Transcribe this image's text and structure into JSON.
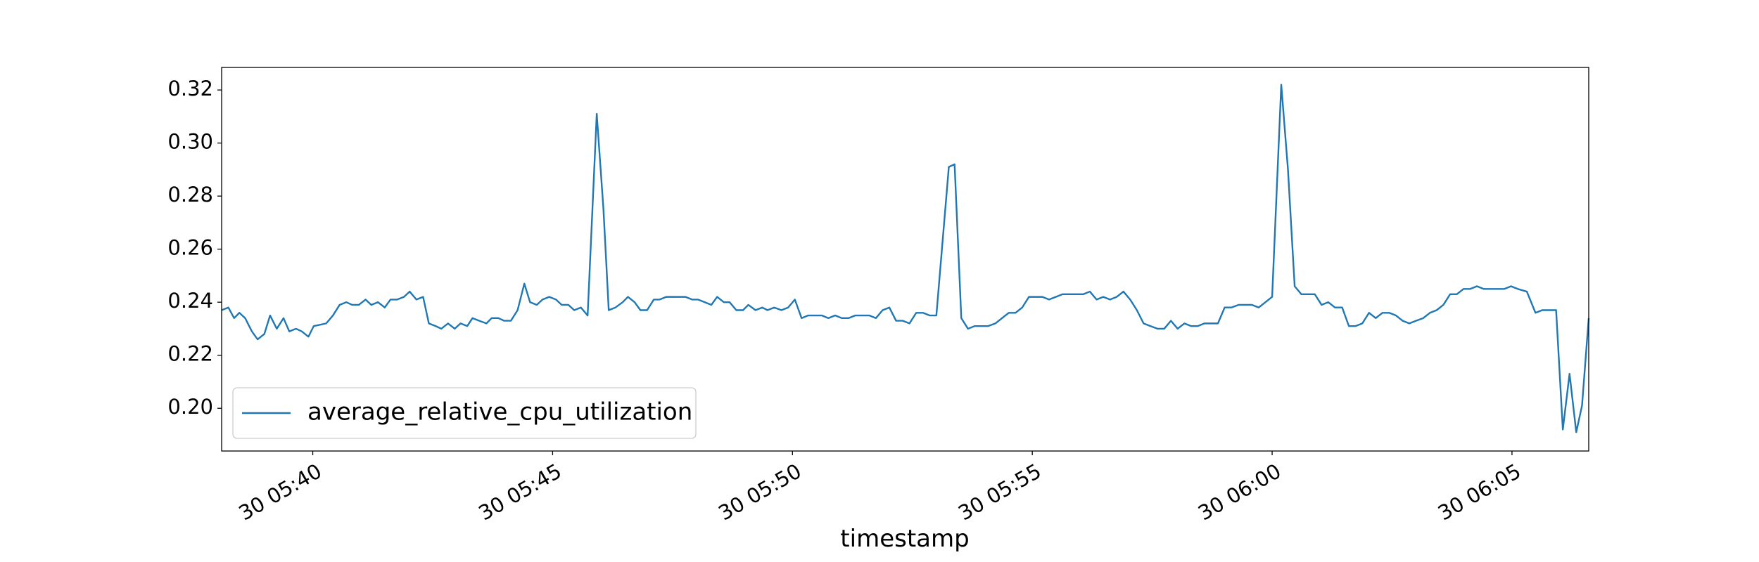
{
  "chart_data": {
    "type": "line",
    "xlabel": "timestamp",
    "x": [
      338.1,
      338.24,
      338.36,
      338.47,
      338.59,
      338.73,
      338.85,
      338.99,
      339.11,
      339.25,
      339.39,
      339.51,
      339.65,
      339.77,
      339.91,
      340.02,
      340.28,
      340.42,
      340.56,
      340.7,
      340.82,
      340.96,
      341.1,
      341.22,
      341.36,
      341.5,
      341.62,
      341.76,
      341.9,
      342.02,
      342.16,
      342.3,
      342.42,
      342.56,
      342.68,
      342.82,
      342.96,
      343.08,
      343.22,
      343.33,
      343.47,
      343.62,
      343.73,
      343.87,
      343.99,
      344.13,
      344.27,
      344.41,
      344.53,
      344.67,
      344.79,
      344.93,
      345.07,
      345.19,
      345.33,
      345.45,
      345.59,
      345.73,
      345.92,
      346.06,
      346.17,
      346.31,
      346.46,
      346.57,
      346.71,
      346.83,
      346.97,
      347.11,
      347.23,
      347.37,
      347.51,
      347.63,
      347.77,
      347.91,
      348.03,
      348.17,
      348.31,
      348.43,
      348.57,
      348.69,
      348.83,
      348.97,
      349.08,
      349.23,
      349.37,
      349.48,
      349.62,
      349.77,
      349.91,
      350.05,
      350.19,
      350.33,
      350.47,
      350.61,
      350.75,
      350.89,
      351.03,
      351.17,
      351.31,
      351.46,
      351.6,
      351.74,
      351.88,
      352.02,
      352.16,
      352.3,
      352.44,
      352.58,
      352.72,
      352.86,
      353.0,
      353.26,
      353.38,
      353.52,
      353.66,
      353.8,
      353.94,
      354.08,
      354.23,
      354.37,
      354.51,
      354.65,
      354.79,
      354.93,
      355.07,
      355.21,
      355.35,
      355.49,
      355.63,
      355.77,
      355.92,
      356.06,
      356.2,
      356.34,
      356.48,
      356.62,
      356.76,
      356.9,
      357.04,
      357.18,
      357.32,
      357.46,
      357.61,
      357.75,
      357.89,
      358.03,
      358.17,
      358.31,
      358.45,
      358.59,
      358.73,
      358.87,
      359.01,
      359.15,
      359.3,
      359.44,
      359.58,
      359.72,
      359.86,
      360.0,
      360.19,
      360.33,
      360.47,
      360.61,
      360.75,
      360.89,
      361.03,
      361.17,
      361.31,
      361.46,
      361.6,
      361.74,
      361.88,
      362.02,
      362.16,
      362.3,
      362.44,
      362.58,
      362.72,
      362.86,
      363.0,
      363.15,
      363.29,
      363.43,
      363.57,
      363.71,
      363.85,
      363.99,
      364.13,
      364.27,
      364.41,
      364.55,
      364.69,
      364.84,
      364.98,
      365.12,
      365.31,
      365.49,
      365.63,
      365.77,
      365.92,
      366.06,
      366.2,
      366.34,
      366.46,
      366.6
    ],
    "series": [
      {
        "name": "average_relative_cpu_utilization",
        "color": "#1f77b4",
        "values": [
          0.237,
          0.238,
          0.234,
          0.236,
          0.234,
          0.229,
          0.226,
          0.228,
          0.235,
          0.23,
          0.234,
          0.229,
          0.23,
          0.229,
          0.227,
          0.231,
          0.232,
          0.235,
          0.239,
          0.24,
          0.239,
          0.239,
          0.241,
          0.239,
          0.24,
          0.238,
          0.241,
          0.241,
          0.242,
          0.244,
          0.241,
          0.242,
          0.232,
          0.231,
          0.23,
          0.232,
          0.23,
          0.232,
          0.231,
          0.234,
          0.233,
          0.232,
          0.234,
          0.234,
          0.233,
          0.233,
          0.237,
          0.247,
          0.24,
          0.239,
          0.241,
          0.242,
          0.241,
          0.239,
          0.239,
          0.237,
          0.238,
          0.235,
          0.311,
          0.275,
          0.237,
          0.238,
          0.24,
          0.242,
          0.24,
          0.237,
          0.237,
          0.241,
          0.241,
          0.242,
          0.242,
          0.242,
          0.242,
          0.241,
          0.241,
          0.24,
          0.239,
          0.242,
          0.24,
          0.24,
          0.237,
          0.237,
          0.239,
          0.237,
          0.238,
          0.237,
          0.238,
          0.237,
          0.238,
          0.241,
          0.234,
          0.235,
          0.235,
          0.235,
          0.234,
          0.235,
          0.234,
          0.234,
          0.235,
          0.235,
          0.235,
          0.234,
          0.237,
          0.238,
          0.233,
          0.233,
          0.232,
          0.236,
          0.236,
          0.235,
          0.235,
          0.291,
          0.292,
          0.234,
          0.23,
          0.231,
          0.231,
          0.231,
          0.232,
          0.234,
          0.236,
          0.236,
          0.238,
          0.242,
          0.242,
          0.242,
          0.241,
          0.242,
          0.243,
          0.243,
          0.243,
          0.243,
          0.244,
          0.241,
          0.242,
          0.241,
          0.242,
          0.244,
          0.241,
          0.237,
          0.232,
          0.231,
          0.23,
          0.23,
          0.233,
          0.23,
          0.232,
          0.231,
          0.231,
          0.232,
          0.232,
          0.232,
          0.238,
          0.238,
          0.239,
          0.239,
          0.239,
          0.238,
          0.24,
          0.242,
          0.322,
          0.29,
          0.246,
          0.243,
          0.243,
          0.243,
          0.239,
          0.24,
          0.238,
          0.238,
          0.231,
          0.231,
          0.232,
          0.236,
          0.234,
          0.236,
          0.236,
          0.235,
          0.233,
          0.232,
          0.233,
          0.234,
          0.236,
          0.237,
          0.239,
          0.243,
          0.243,
          0.245,
          0.245,
          0.246,
          0.245,
          0.245,
          0.245,
          0.245,
          0.246,
          0.245,
          0.244,
          0.236,
          0.237,
          0.237,
          0.237,
          0.192,
          0.213,
          0.191,
          0.201,
          0.234
        ]
      }
    ],
    "xlim": [
      338.1,
      366.6
    ],
    "xticks": [
      {
        "value": 340,
        "label": "30 05:40"
      },
      {
        "value": 345,
        "label": "30 05:45"
      },
      {
        "value": 350,
        "label": "30 05:50"
      },
      {
        "value": 355,
        "label": "30 05:55"
      },
      {
        "value": 360,
        "label": "30 06:00"
      },
      {
        "value": 365,
        "label": "30 06:05"
      }
    ],
    "ylim": [
      0.1839,
      0.3285
    ],
    "yticks": [
      {
        "value": 0.2,
        "label": "0.20"
      },
      {
        "value": 0.22,
        "label": "0.22"
      },
      {
        "value": 0.24,
        "label": "0.24"
      },
      {
        "value": 0.26,
        "label": "0.26"
      },
      {
        "value": 0.28,
        "label": "0.28"
      },
      {
        "value": 0.3,
        "label": "0.30"
      },
      {
        "value": 0.32,
        "label": "0.32"
      }
    ],
    "grid": false,
    "legend": "lower left"
  }
}
